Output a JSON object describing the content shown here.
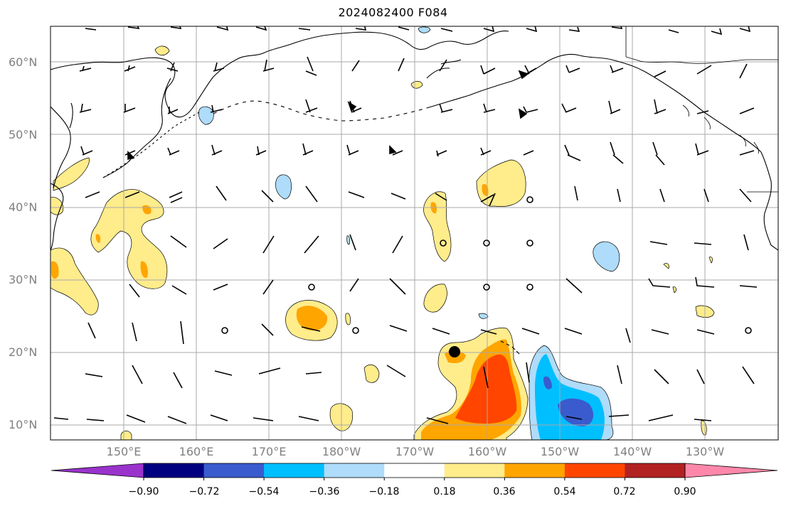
{
  "title": "2024082400 F084",
  "lat_labels": [
    {
      "label": "60°N",
      "lat": 60
    },
    {
      "label": "50°N",
      "lat": 50
    },
    {
      "label": "40°N",
      "lat": 40
    },
    {
      "label": "30°N",
      "lat": 30
    },
    {
      "label": "20°N",
      "lat": 20
    },
    {
      "label": "10°N",
      "lat": 10
    }
  ],
  "lon_labels": [
    {
      "label": "150°E",
      "lon": 150
    },
    {
      "label": "160°E",
      "lon": 160
    },
    {
      "label": "170°E",
      "lon": 170
    },
    {
      "label": "180°W",
      "lon": 180
    },
    {
      "label": "170°W",
      "lon": 190
    },
    {
      "label": "160°W",
      "lon": 200
    },
    {
      "label": "150°W",
      "lon": 210
    },
    {
      "label": "140°W",
      "lon": 220
    },
    {
      "label": "130°W",
      "lon": 230
    }
  ],
  "colorbar": {
    "colors": [
      "#9933cc",
      "#000080",
      "#3a5bcd",
      "#00bfff",
      "#aedcfa",
      "#ffffff",
      "#ffec8b",
      "#ffa500",
      "#ff4500",
      "#b22222",
      "#ff88aa"
    ],
    "ticks": [
      "−0.90",
      "−0.72",
      "−0.54",
      "−0.36",
      "−0.18",
      "0.18",
      "0.36",
      "0.54",
      "0.72",
      "0.90"
    ]
  }
}
